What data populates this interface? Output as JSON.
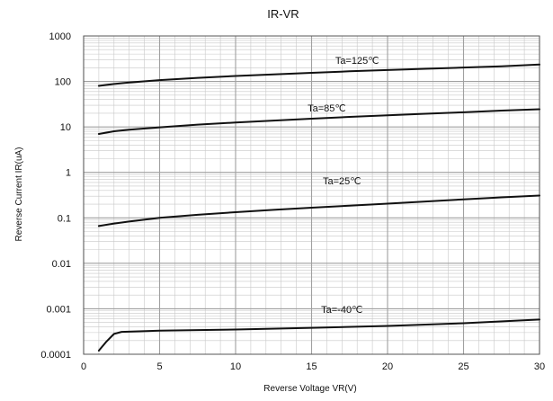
{
  "chart_data": {
    "type": "line",
    "title": "IR-VR",
    "xlabel": "Reverse Voltage   VR(V)",
    "ylabel": "Reverse Current  IR(uA)",
    "xlim": [
      0,
      30
    ],
    "ylim": [
      0.0001,
      1000
    ],
    "yscale": "log",
    "grid": true,
    "x_ticks": [
      "0",
      "5",
      "10",
      "15",
      "20",
      "25",
      "30"
    ],
    "y_ticks": [
      "0.0001",
      "0.001",
      "0.01",
      "0.1",
      "1",
      "10",
      "100",
      "1000"
    ],
    "series": [
      {
        "name": "Ta=125℃",
        "x": [
          1,
          2,
          3,
          5,
          7.5,
          10,
          12.5,
          15,
          17.5,
          20,
          22.5,
          25,
          27.5,
          30
        ],
        "y": [
          80,
          88,
          95,
          107,
          120,
          132,
          143,
          155,
          167,
          178,
          190,
          202,
          215,
          235
        ]
      },
      {
        "name": "Ta=85℃",
        "x": [
          1,
          2,
          3,
          5,
          7.5,
          10,
          12.5,
          15,
          17.5,
          20,
          22.5,
          25,
          27.5,
          30
        ],
        "y": [
          7,
          8,
          8.7,
          9.8,
          11.2,
          12.5,
          13.8,
          15.2,
          16.6,
          18,
          19.5,
          21,
          22.8,
          24.5
        ]
      },
      {
        "name": "Ta=25℃",
        "x": [
          1,
          2,
          3,
          5,
          7.5,
          10,
          12.5,
          15,
          17.5,
          20,
          22.5,
          25,
          27.5,
          30
        ],
        "y": [
          0.066,
          0.075,
          0.083,
          0.1,
          0.117,
          0.133,
          0.15,
          0.167,
          0.185,
          0.205,
          0.228,
          0.255,
          0.283,
          0.31
        ]
      },
      {
        "name": "Ta=-40℃",
        "x": [
          1,
          1.5,
          2,
          2.5,
          5,
          10,
          15,
          20,
          25,
          30
        ],
        "y": [
          0.00012,
          0.00019,
          0.00028,
          0.00031,
          0.00033,
          0.00035,
          0.00038,
          0.00042,
          0.00048,
          0.00058
        ]
      }
    ]
  },
  "colors": {
    "line": "#111111",
    "major_grid": "#a0a0a0",
    "minor_grid": "#c8c8c8",
    "axis": "#555555"
  }
}
